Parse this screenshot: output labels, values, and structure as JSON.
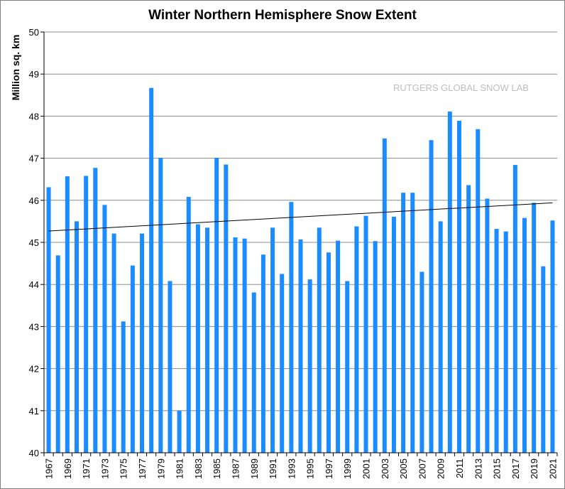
{
  "chart_data": {
    "type": "bar",
    "title": "Winter Northern Hemisphere Snow Extent",
    "ylabel": "Million sq. km",
    "xlabel": "",
    "watermark": "RUTGERS GLOBAL SNOW LAB",
    "ylim": [
      40,
      50
    ],
    "yticks": [
      40,
      41,
      42,
      43,
      44,
      45,
      46,
      47,
      48,
      49,
      50
    ],
    "grid": true,
    "legend": "none",
    "bar_color": "#1a8cff",
    "trend_color": "#000000",
    "categories": [
      1967,
      1968,
      1969,
      1970,
      1971,
      1972,
      1973,
      1974,
      1975,
      1976,
      1977,
      1978,
      1979,
      1980,
      1981,
      1982,
      1983,
      1984,
      1985,
      1986,
      1987,
      1988,
      1989,
      1990,
      1991,
      1992,
      1993,
      1994,
      1995,
      1996,
      1997,
      1998,
      1999,
      2000,
      2001,
      2002,
      2003,
      2004,
      2005,
      2006,
      2007,
      2008,
      2009,
      2010,
      2011,
      2012,
      2013,
      2014,
      2015,
      2016,
      2017,
      2018,
      2019,
      2020,
      2021
    ],
    "x_tick_labels": [
      "1967",
      "1969",
      "1971",
      "1973",
      "1975",
      "1977",
      "1979",
      "1981",
      "1983",
      "1985",
      "1987",
      "1989",
      "1991",
      "1993",
      "1995",
      "1997",
      "1999",
      "2001",
      "2003",
      "2005",
      "2007",
      "2009",
      "2011",
      "2013",
      "2015",
      "2017",
      "2019",
      "2021"
    ],
    "values": [
      46.31,
      44.69,
      46.57,
      45.5,
      46.58,
      46.77,
      45.89,
      45.21,
      43.12,
      44.45,
      45.21,
      48.67,
      47.01,
      44.08,
      41.0,
      46.08,
      45.43,
      45.35,
      47.01,
      46.85,
      45.12,
      45.09,
      43.81,
      44.71,
      45.35,
      44.25,
      45.96,
      45.07,
      44.12,
      45.35,
      44.76,
      45.04,
      44.08,
      45.38,
      45.63,
      45.03,
      47.47,
      45.61,
      46.18,
      46.18,
      44.3,
      47.43,
      45.5,
      48.11,
      47.89,
      46.36,
      47.69,
      46.04,
      45.32,
      45.26,
      46.84,
      45.58,
      45.94,
      44.43,
      45.52
    ],
    "trend": {
      "start": 45.27,
      "end": 45.94
    }
  }
}
